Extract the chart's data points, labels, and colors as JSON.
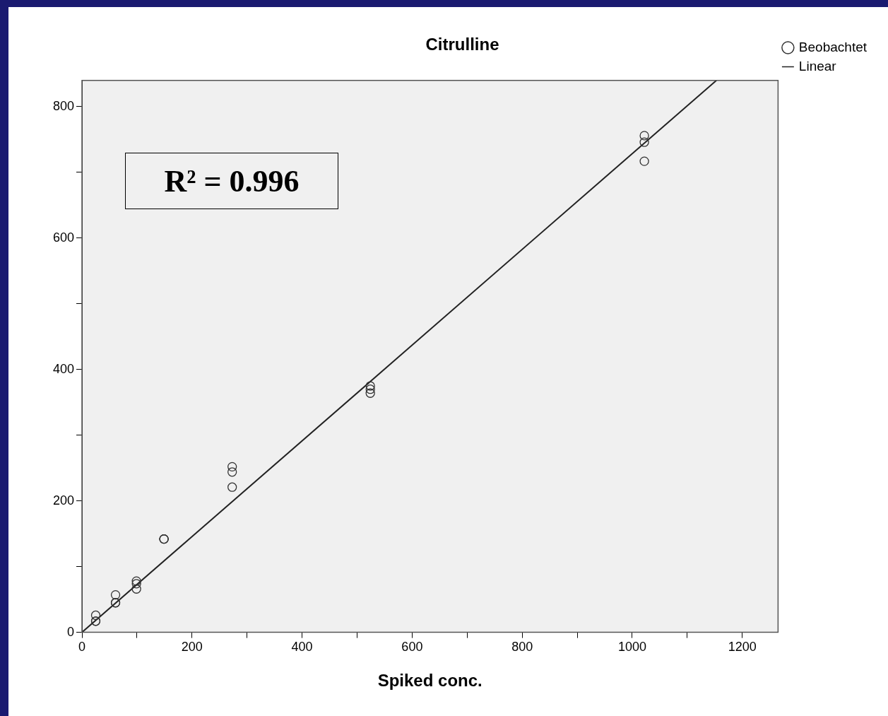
{
  "chart_data": {
    "type": "scatter",
    "title": "Citrulline",
    "xlabel": "Spiked conc.",
    "annotations": [
      "R² = 0.996"
    ],
    "series": [
      {
        "name": "Beobachtet",
        "type": "scatter",
        "color": "#333333",
        "marker": "circle",
        "x": [
          25,
          25,
          25,
          61,
          61,
          61,
          99,
          99,
          99,
          149,
          149,
          149,
          273,
          273,
          273,
          524,
          524,
          524,
          1022,
          1022,
          1022
        ],
        "values": [
          26,
          17,
          17,
          57,
          45,
          45,
          78,
          74,
          66,
          142,
          142,
          142,
          252,
          244,
          221,
          375,
          370,
          364,
          756,
          746,
          717
        ]
      },
      {
        "name": "Linear",
        "type": "line",
        "color": "#222222",
        "marker": "none",
        "x": [
          0,
          1153
        ],
        "values": [
          0,
          840
        ]
      }
    ],
    "xlim": [
      0,
      1265
    ],
    "ylim": [
      0,
      840
    ],
    "xticks": [
      0,
      {
        "value": 100,
        "label": null
      },
      200,
      {
        "value": 300,
        "label": null
      },
      400,
      {
        "value": 500,
        "label": null
      },
      600,
      {
        "value": 700,
        "label": null
      },
      800,
      {
        "value": 900,
        "label": null
      },
      1000,
      {
        "value": 1100,
        "label": null
      },
      1200
    ],
    "yticks": [
      0,
      {
        "value": 100,
        "label": null
      },
      200,
      {
        "value": 300,
        "label": null
      },
      400,
      {
        "value": 500,
        "label": null
      },
      600,
      {
        "value": 700,
        "label": null
      },
      800
    ],
    "grid": false,
    "legend": "top right"
  }
}
